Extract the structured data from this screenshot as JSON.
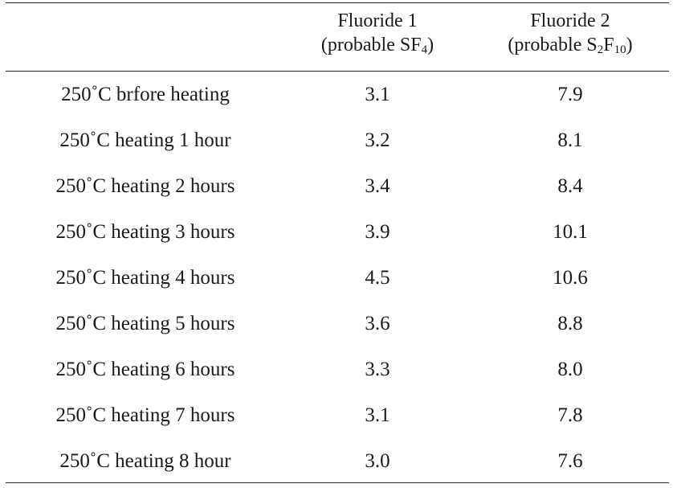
{
  "table": {
    "header": {
      "col1_line1": "Fluoride 1",
      "col1_line2_pre": "(probable SF",
      "col1_line2_sub": "4",
      "col1_line2_post": ")",
      "col2_line1": "Fluoride 2",
      "col2_line2_pre": "(probable S",
      "col2_line2_sub1": "2",
      "col2_line2_mid": "F",
      "col2_line2_sub2": "10",
      "col2_line2_post": ")"
    },
    "rows": [
      {
        "condition": "250˚C brfore heating",
        "f1": "3.1",
        "f2": "7.9"
      },
      {
        "condition": "250˚C heating 1 hour",
        "f1": "3.2",
        "f2": "8.1"
      },
      {
        "condition": "250˚C heating 2 hours",
        "f1": "3.4",
        "f2": "8.4"
      },
      {
        "condition": "250˚C heating 3 hours",
        "f1": "3.9",
        "f2": "10.1"
      },
      {
        "condition": "250˚C heating 4 hours",
        "f1": "4.5",
        "f2": "10.6"
      },
      {
        "condition": "250˚C heating 5 hours",
        "f1": "3.6",
        "f2": "8.8"
      },
      {
        "condition": "250˚C heating 6 hours",
        "f1": "3.3",
        "f2": "8.0"
      },
      {
        "condition": "250˚C heating 7 hours",
        "f1": "3.1",
        "f2": "7.8"
      },
      {
        "condition": "250˚C heating 8 hour",
        "f1": "3.0",
        "f2": "7.6"
      }
    ]
  }
}
